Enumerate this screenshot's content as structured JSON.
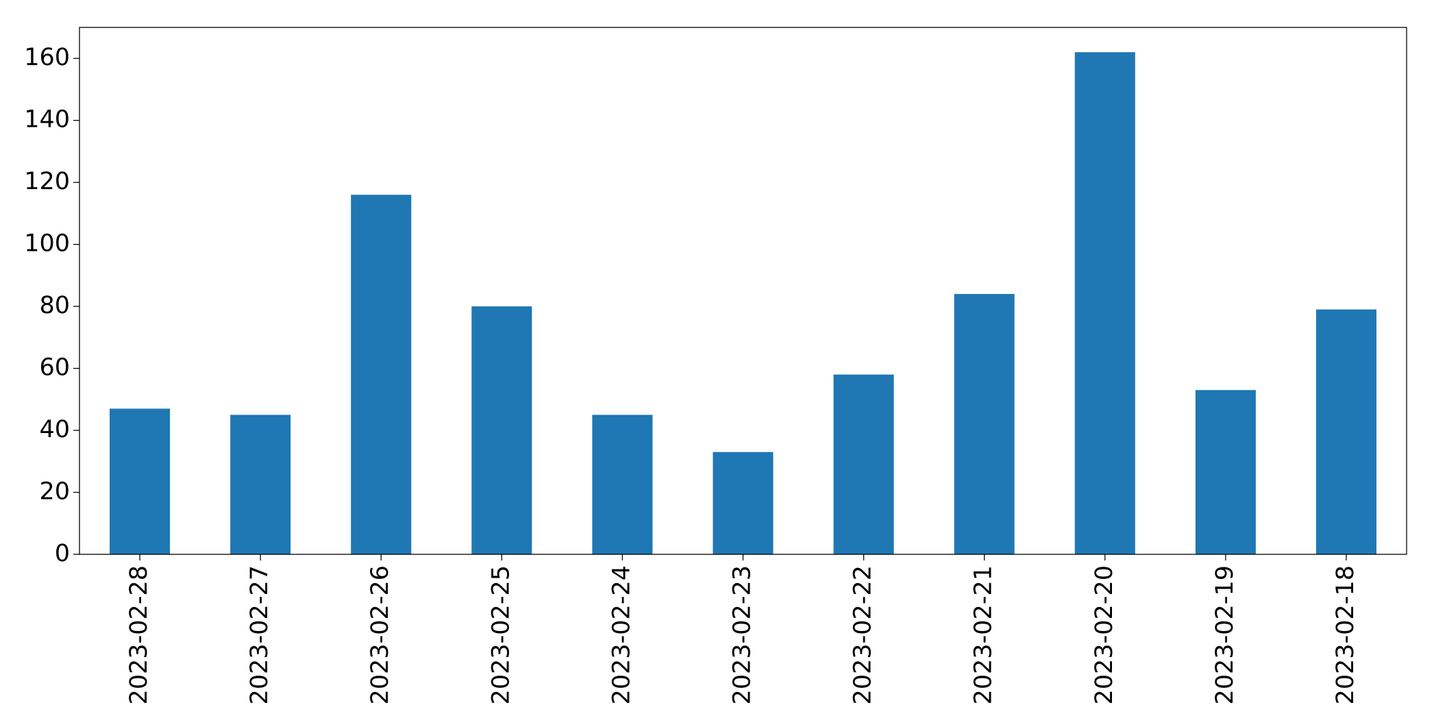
{
  "chart_data": {
    "type": "bar",
    "categories": [
      "2023-02-28",
      "2023-02-27",
      "2023-02-26",
      "2023-02-25",
      "2023-02-24",
      "2023-02-23",
      "2023-02-22",
      "2023-02-21",
      "2023-02-20",
      "2023-02-19",
      "2023-02-18"
    ],
    "values": [
      47,
      45,
      116,
      80,
      45,
      33,
      58,
      84,
      162,
      53,
      79
    ],
    "color": "#1f77b4",
    "ylim": [
      0,
      170
    ],
    "yticks": [
      0,
      20,
      40,
      60,
      80,
      100,
      120,
      140,
      160
    ],
    "grid": false
  }
}
